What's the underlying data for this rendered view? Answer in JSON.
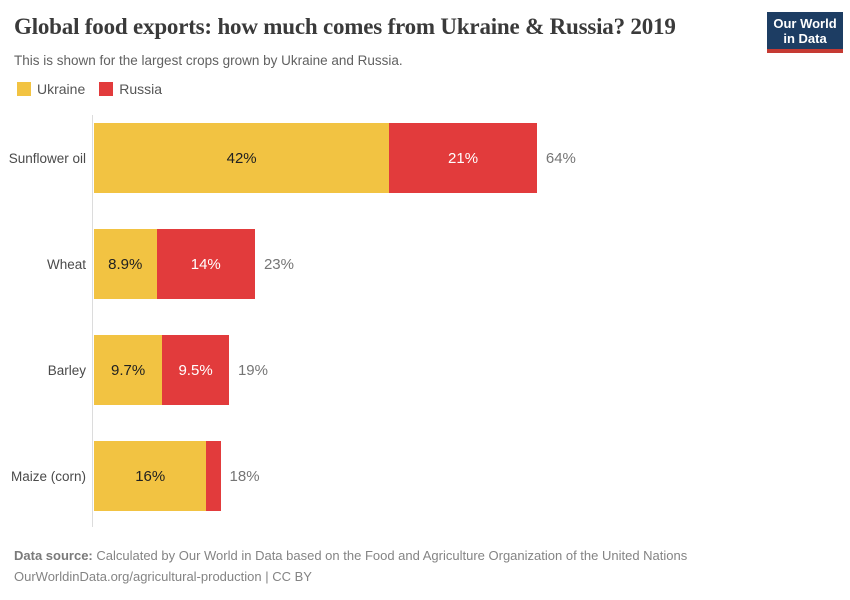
{
  "header": {
    "title": "Global food exports: how much comes from Ukraine & Russia? 2019",
    "subtitle": "This is shown for the largest crops grown by Ukraine and Russia."
  },
  "logo": {
    "line1": "Our World",
    "line2": "in Data"
  },
  "legend": [
    {
      "label": "Ukraine",
      "color": "#f2c342"
    },
    {
      "label": "Russia",
      "color": "#e23b3c"
    }
  ],
  "colors": {
    "ukraine": "#f2c342",
    "russia": "#e23b3c",
    "logo_bg": "#1d3d63",
    "logo_stripe": "#c53a33",
    "axis_line": "#dcdcdc"
  },
  "chart_data": {
    "type": "bar",
    "orientation": "horizontal",
    "stacked": true,
    "title": "Global food exports: how much comes from Ukraine & Russia? 2019",
    "subtitle": "This is shown for the largest crops grown by Ukraine and Russia.",
    "unit": "%",
    "xlim": [
      0,
      100
    ],
    "grid": false,
    "legend_position": "top-left",
    "categories": [
      "Sunflower oil",
      "Wheat",
      "Barley",
      "Maize (corn)"
    ],
    "series": [
      {
        "name": "Ukraine",
        "color": "#f2c342",
        "values": [
          42,
          8.9,
          9.7,
          16
        ]
      },
      {
        "name": "Russia",
        "color": "#e23b3c",
        "values": [
          21,
          14,
          9.5,
          2
        ]
      }
    ],
    "totals": [
      64,
      23,
      19,
      18
    ],
    "rows": [
      {
        "category": "Sunflower oil",
        "ukraine": 42,
        "russia": 21,
        "ukraine_label": "42%",
        "russia_label": "21%",
        "total_label": "64%"
      },
      {
        "category": "Wheat",
        "ukraine": 8.9,
        "russia": 14,
        "ukraine_label": "8.9%",
        "russia_label": "14%",
        "total_label": "23%"
      },
      {
        "category": "Barley",
        "ukraine": 9.7,
        "russia": 9.5,
        "ukraine_label": "9.7%",
        "russia_label": "9.5%",
        "total_label": "19%"
      },
      {
        "category": "Maize (corn)",
        "ukraine": 16,
        "russia": 2,
        "ukraine_label": "16%",
        "russia_label": "",
        "total_label": "18%"
      }
    ]
  },
  "footer": {
    "source_prefix": "Data source:",
    "source_text": " Calculated by Our World in Data based on the Food and Agriculture Organization of the United Nations",
    "link": "OurWorldinData.org/agricultural-production",
    "separator": " | ",
    "license": "CC BY"
  }
}
